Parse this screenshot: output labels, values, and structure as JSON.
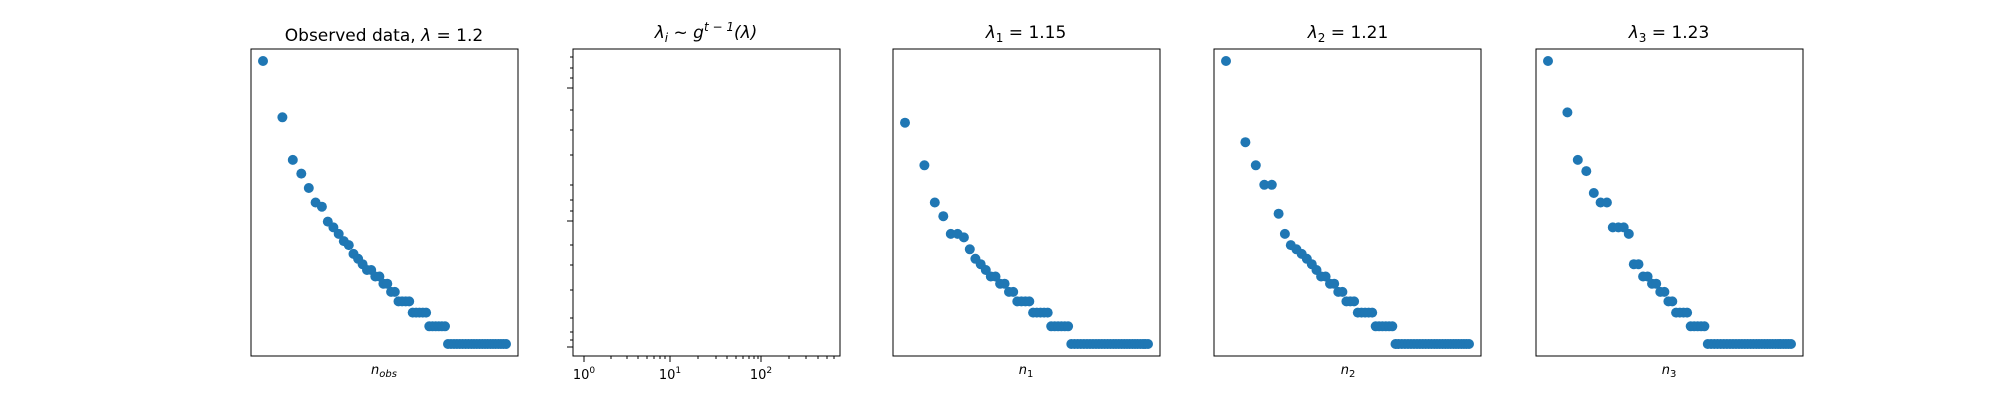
{
  "colors": {
    "marker": "#1f77b4",
    "axes": "#000000",
    "background": "#ffffff"
  },
  "chart_data": [
    {
      "type": "scatter",
      "title_main": "Observed data, ",
      "title_lambda_sym": "λ",
      "title_value": " = 1.2",
      "xlabel_base": "n",
      "xlabel_sub": "obs",
      "xscale": "log",
      "yscale": "log",
      "ticks_visible": false,
      "x": [
        1,
        2,
        3,
        4,
        5,
        6,
        7,
        8,
        9,
        10,
        11,
        12,
        13,
        14,
        15,
        16,
        17,
        18,
        19,
        20,
        21,
        22,
        23,
        24,
        25,
        26,
        27,
        28,
        29,
        30,
        31,
        32,
        33,
        34,
        35,
        36,
        37,
        38,
        39,
        40,
        41,
        42,
        43,
        44,
        45,
        46,
        47,
        48,
        49,
        50,
        51,
        52,
        53,
        54,
        55,
        56,
        57,
        58,
        59,
        60
      ],
      "y": [
        300,
        120,
        60,
        48,
        38,
        30,
        28,
        22,
        20,
        18,
        16,
        15,
        13,
        12,
        11,
        10,
        10,
        9,
        9,
        8,
        8,
        7,
        7,
        6,
        6,
        6,
        6,
        5,
        5,
        5,
        5,
        5,
        4,
        4,
        4,
        4,
        4,
        4,
        3,
        3,
        3,
        3,
        3,
        3,
        3,
        3,
        3,
        3,
        3,
        3,
        3,
        3,
        3,
        3,
        3,
        3,
        3,
        3,
        3,
        3
      ]
    },
    {
      "type": "scatter",
      "title_lambda_sym": "λ",
      "title_sub": "i",
      "title_tilde": " ~ g",
      "title_sup": "t − 1",
      "title_args": "(λ)",
      "xscale": "log",
      "yscale": "log",
      "x_tick_labels": [
        {
          "base": "10",
          "exp": "0",
          "value": 1
        },
        {
          "base": "10",
          "exp": "1",
          "value": 10
        },
        {
          "base": "10",
          "exp": "2",
          "value": 100
        }
      ],
      "xlim": [
        0.7,
        1000
      ],
      "x": [],
      "y": []
    },
    {
      "type": "scatter",
      "title_lambda_sym": "λ",
      "title_sub": "1",
      "title_value": " = 1.15",
      "xlabel_base": "n",
      "xlabel_sub": "1",
      "xscale": "log",
      "yscale": "log",
      "ticks_visible": false,
      "x": [
        1,
        2,
        3,
        4,
        5,
        6,
        7,
        8,
        9,
        10,
        11,
        12,
        13,
        14,
        15,
        16,
        17,
        18,
        19,
        20,
        21,
        22,
        23,
        24,
        25,
        26,
        27,
        28,
        29,
        30,
        31,
        32,
        33,
        34,
        35,
        36,
        37,
        38,
        39,
        40,
        41,
        42,
        43,
        44,
        45,
        46,
        47,
        48,
        49,
        50,
        51,
        52,
        53,
        54,
        55,
        56,
        57,
        58,
        59,
        60
      ],
      "y": [
        110,
        55,
        30,
        24,
        18,
        18,
        17,
        14,
        12,
        11,
        10,
        9,
        9,
        8,
        8,
        7,
        7,
        6,
        6,
        6,
        6,
        5,
        5,
        5,
        5,
        5,
        4,
        4,
        4,
        4,
        4,
        4,
        3,
        3,
        3,
        3,
        3,
        3,
        3,
        3,
        3,
        3,
        3,
        3,
        3,
        3,
        3,
        3,
        3,
        3,
        3,
        3,
        3,
        3,
        3,
        3,
        3,
        3,
        3,
        3
      ]
    },
    {
      "type": "scatter",
      "title_lambda_sym": "λ",
      "title_sub": "2",
      "title_value": " = 1.21",
      "xlabel_base": "n",
      "xlabel_sub": "2",
      "xscale": "log",
      "yscale": "log",
      "ticks_visible": false,
      "x": [
        1,
        2,
        3,
        4,
        5,
        6,
        7,
        8,
        9,
        10,
        11,
        12,
        13,
        14,
        15,
        16,
        17,
        18,
        19,
        20,
        21,
        22,
        23,
        24,
        25,
        26,
        27,
        28,
        29,
        30,
        31,
        32,
        33,
        34,
        35,
        36,
        37,
        38,
        39,
        40,
        41,
        42,
        43,
        44,
        45,
        46,
        47,
        48,
        49,
        50,
        51,
        52,
        53,
        54,
        55,
        56,
        57,
        58,
        59,
        60
      ],
      "y": [
        300,
        80,
        55,
        40,
        40,
        25,
        18,
        15,
        14,
        13,
        12,
        11,
        10,
        9,
        9,
        8,
        8,
        7,
        7,
        6,
        6,
        6,
        5,
        5,
        5,
        5,
        5,
        4,
        4,
        4,
        4,
        4,
        4,
        3,
        3,
        3,
        3,
        3,
        3,
        3,
        3,
        3,
        3,
        3,
        3,
        3,
        3,
        3,
        3,
        3,
        3,
        3,
        3,
        3,
        3,
        3,
        3,
        3,
        3,
        3
      ]
    },
    {
      "type": "scatter",
      "title_lambda_sym": "λ",
      "title_sub": "3",
      "title_value": " = 1.23",
      "xlabel_base": "n",
      "xlabel_sub": "3",
      "xscale": "log",
      "yscale": "log",
      "ticks_visible": false,
      "x": [
        1,
        2,
        3,
        4,
        5,
        6,
        7,
        8,
        9,
        10,
        11,
        12,
        13,
        14,
        15,
        16,
        17,
        18,
        19,
        20,
        21,
        22,
        23,
        24,
        25,
        26,
        27,
        28,
        29,
        30,
        31,
        32,
        33,
        34,
        35,
        36,
        37,
        38,
        39,
        40,
        41,
        42,
        43,
        44,
        45,
        46,
        47,
        48,
        49,
        50,
        51,
        52,
        53,
        54,
        55,
        56,
        57,
        58,
        59,
        60
      ],
      "y": [
        300,
        130,
        60,
        50,
        35,
        30,
        30,
        20,
        20,
        20,
        18,
        11,
        11,
        9,
        9,
        8,
        8,
        7,
        7,
        6,
        6,
        5,
        5,
        5,
        5,
        4,
        4,
        4,
        4,
        4,
        3,
        3,
        3,
        3,
        3,
        3,
        3,
        3,
        3,
        3,
        3,
        3,
        3,
        3,
        3,
        3,
        3,
        3,
        3,
        3,
        3,
        3,
        3,
        3,
        3,
        3,
        3,
        3,
        3,
        3
      ]
    }
  ]
}
